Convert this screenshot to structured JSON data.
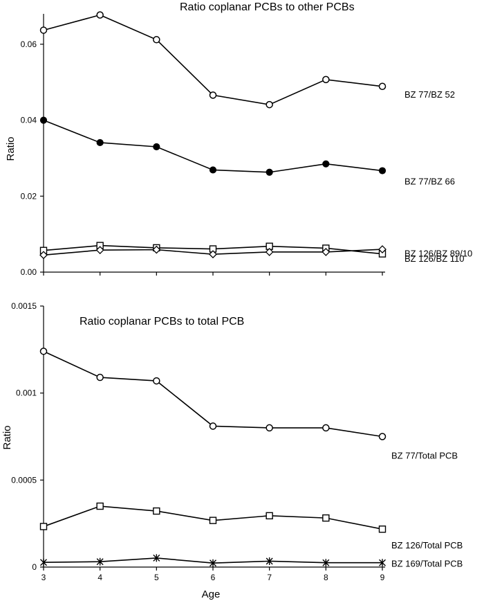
{
  "chart_data": [
    {
      "type": "line",
      "title": "Ratio coplanar PCBs to other PCBs",
      "ylabel": "Ratio",
      "xlabel": "",
      "x": [
        3,
        4,
        5,
        6,
        7,
        8,
        9
      ],
      "xlim": [
        3,
        9
      ],
      "ylim": [
        0,
        0.068
      ],
      "yticks": [
        "0.00",
        "0.02",
        "0.04",
        "0.06"
      ],
      "ytick_values": [
        0,
        0.02,
        0.04,
        0.06
      ],
      "grid": false,
      "series": [
        {
          "name": "BZ 77/BZ 52",
          "marker": "open-circle",
          "values": [
            0.0637,
            0.0677,
            0.0612,
            0.0466,
            0.0441,
            0.0507,
            0.0489
          ]
        },
        {
          "name": "BZ 77/BZ 66",
          "marker": "filled-circle",
          "values": [
            0.04,
            0.0341,
            0.033,
            0.0269,
            0.0263,
            0.0285,
            0.0267
          ]
        },
        {
          "name": "BZ 126/BZ 89/10",
          "marker": "open-square",
          "values": [
            0.0057,
            0.007,
            0.0064,
            0.0061,
            0.0068,
            0.0063,
            0.0048
          ]
        },
        {
          "name": "BZ 126/BZ 110",
          "marker": "open-diamond",
          "values": [
            0.0045,
            0.0058,
            0.0059,
            0.0047,
            0.0053,
            0.0053,
            0.006
          ]
        }
      ]
    },
    {
      "type": "line",
      "title": "Ratio coplanar PCBs to total PCB",
      "ylabel": "Ratio",
      "xlabel": "Age",
      "x": [
        3,
        4,
        5,
        6,
        7,
        8,
        9
      ],
      "xticks": [
        "3",
        "4",
        "5",
        "6",
        "7",
        "8",
        "9"
      ],
      "xlim": [
        3,
        9
      ],
      "ylim": [
        0,
        0.0015
      ],
      "yticks": [
        "0",
        "0.0005",
        "0.001",
        "0.0015"
      ],
      "ytick_values": [
        0,
        0.0005,
        0.001,
        0.0015
      ],
      "grid": false,
      "series": [
        {
          "name": "BZ 77/Total PCB",
          "marker": "open-circle",
          "values": [
            0.00124,
            0.00109,
            0.00107,
            0.00081,
            0.0008,
            0.0008,
            0.00075
          ]
        },
        {
          "name": "BZ 126/Total PCB",
          "marker": "open-square",
          "values": [
            0.000233,
            0.00035,
            0.000322,
            0.000268,
            0.000295,
            0.000282,
            0.000218
          ]
        },
        {
          "name": "BZ 169/Total PCB",
          "marker": "asterisk",
          "values": [
            2.7e-05,
            3.1e-05,
            5.2e-05,
            2.3e-05,
            3.4e-05,
            2.5e-05,
            2.5e-05
          ]
        }
      ]
    }
  ]
}
